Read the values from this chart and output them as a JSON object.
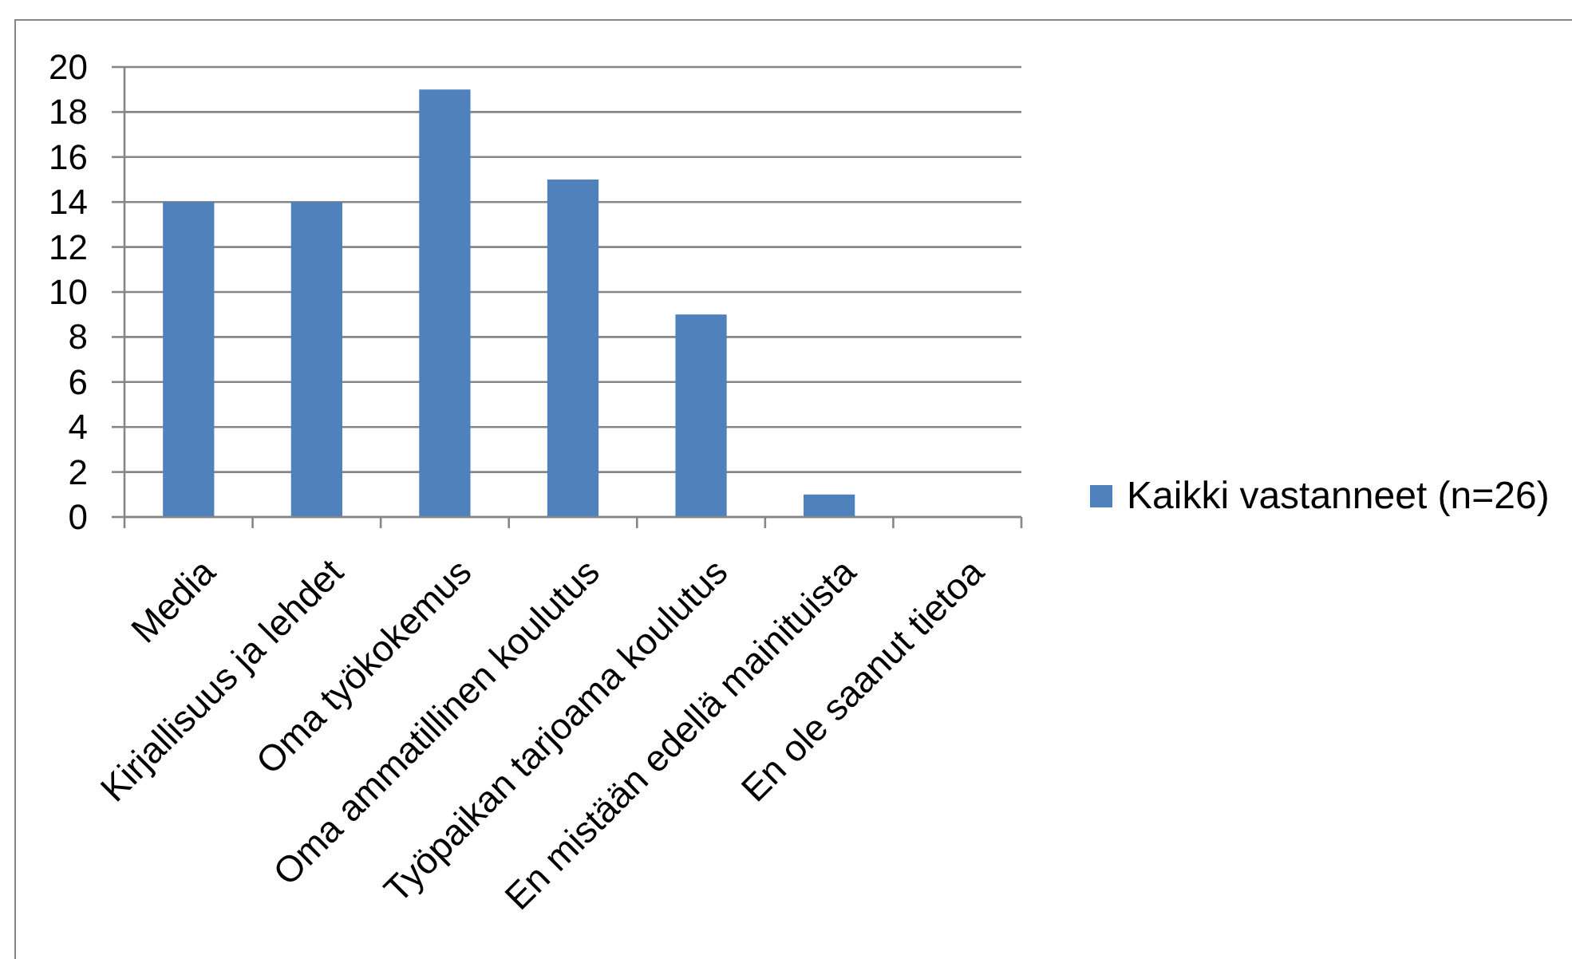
{
  "chart_data": {
    "type": "bar",
    "categories": [
      "Media",
      "Kirjallisuus ja lehdet",
      "Oma työkokemus",
      "Oma ammatillinen koulutus",
      "Työpaikan tarjoama koulutus",
      "En mistään edellä mainituista",
      "En ole saanut tietoa"
    ],
    "series": [
      {
        "name": "Kaikki vastanneet (n=26)",
        "color": "#4f81bd",
        "values": [
          14,
          14,
          19,
          15,
          9,
          1,
          0
        ]
      }
    ],
    "ylim": [
      0,
      20
    ],
    "yticks": [
      0,
      2,
      4,
      6,
      8,
      10,
      12,
      14,
      16,
      18,
      20
    ],
    "grid": "y",
    "legend": "right"
  }
}
